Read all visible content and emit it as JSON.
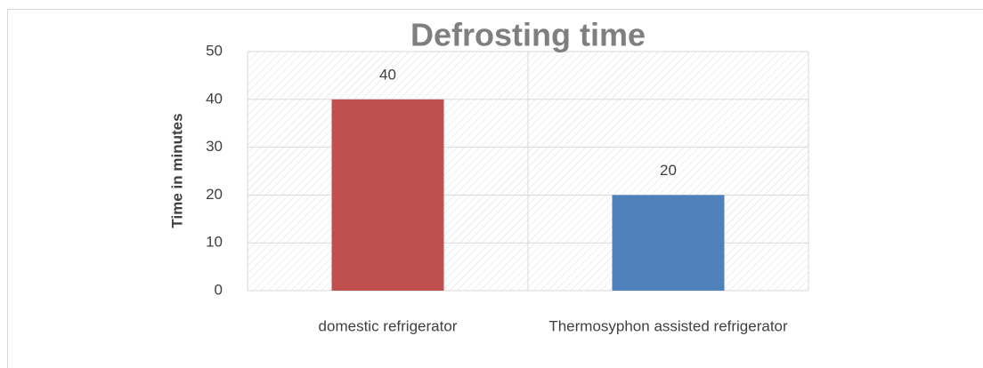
{
  "chart_data": {
    "type": "bar",
    "title": "Defrosting time",
    "y_label": "Time in minutes",
    "categories": [
      "domestic refrigerator",
      "Thermosyphon assisted refrigerator"
    ],
    "values": [
      40,
      20
    ],
    "colors": [
      "#c0504d",
      "#4f81bd"
    ],
    "ylim": [
      0,
      50
    ],
    "yticks": [
      0,
      10,
      20,
      30,
      40,
      50
    ],
    "grid": true,
    "data_labels": true
  }
}
